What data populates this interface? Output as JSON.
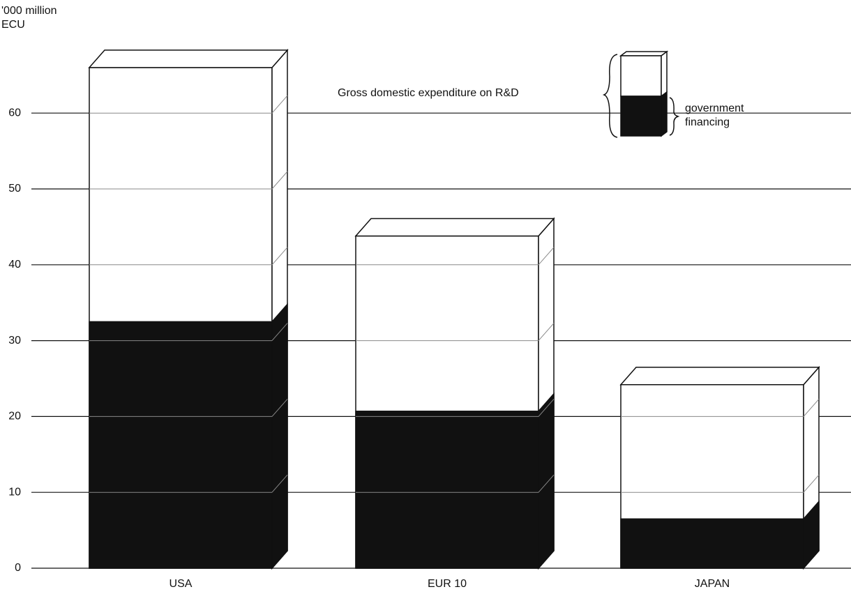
{
  "chart_data": {
    "type": "bar",
    "y_label": "'000 million ECU",
    "categories": [
      "USA",
      "EUR 10",
      "JAPAN"
    ],
    "series": [
      {
        "name": "Gross domestic expenditure on R&D",
        "color": "#ffffff",
        "values": [
          66,
          43.8,
          24.2
        ]
      },
      {
        "name": "government financing",
        "color": "#111111",
        "values": [
          32.5,
          20.7,
          6.5
        ]
      }
    ],
    "ylim": [
      0,
      70
    ],
    "yticks": [
      0,
      10,
      20,
      30,
      40,
      50,
      60
    ],
    "grid": true
  }
}
